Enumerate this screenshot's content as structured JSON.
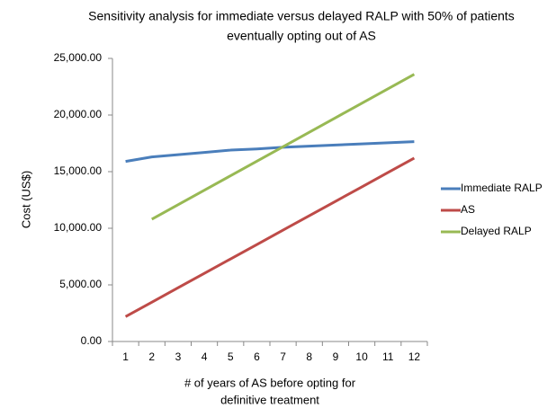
{
  "chart_data": {
    "type": "line",
    "title": [
      "Sensitivity analysis for immediate versus delayed RALP with 50% of patients",
      "eventually opting out of AS"
    ],
    "x_label": [
      "# of years of AS before opting for",
      "definitive treatment"
    ],
    "y_label": "Cost (US$)",
    "categories": [
      1,
      2,
      3,
      4,
      5,
      6,
      7,
      8,
      9,
      10,
      11,
      12
    ],
    "series": [
      {
        "name": "Immediate RALP",
        "color": "#4a7ebb",
        "values": [
          15900,
          16300,
          16500,
          16700,
          16900,
          17000,
          17150,
          17250,
          17350,
          17450,
          17550,
          17650
        ]
      },
      {
        "name": "AS",
        "color": "#be4b48",
        "values": [
          2200,
          3470,
          4750,
          6020,
          7290,
          8560,
          9840,
          11110,
          12380,
          13650,
          14930,
          16200
        ]
      },
      {
        "name": "Delayed RALP",
        "color": "#98b954",
        "values": [
          null,
          10800,
          12080,
          13360,
          14640,
          15920,
          17200,
          18480,
          19760,
          21040,
          22320,
          23600
        ]
      }
    ],
    "ylim": [
      0,
      25000
    ],
    "yticks": [
      {
        "value": 0,
        "label": "0.00"
      },
      {
        "value": 5000,
        "label": "5,000.00"
      },
      {
        "value": 10000,
        "label": "10,000.00"
      },
      {
        "value": 15000,
        "label": "15,000.00"
      },
      {
        "value": 20000,
        "label": "20,000.00"
      },
      {
        "value": 25000,
        "label": "25,000.00"
      }
    ],
    "grid": false,
    "legend": "right"
  }
}
